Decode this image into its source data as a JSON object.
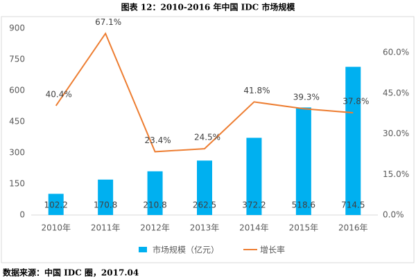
{
  "chart_data": {
    "type": "bar-line",
    "title": "图表 12：2010-2016 年中国 IDC 市场规模",
    "source": "数据来源：中国 IDC 圈，2017.04",
    "categories": [
      "2010年",
      "2011年",
      "2012年",
      "2013年",
      "2014年",
      "2015年",
      "2016年"
    ],
    "series": [
      {
        "name": "市场规模（亿元）",
        "type": "bar",
        "color": "#00b0f0",
        "values": [
          102.2,
          170.8,
          210.8,
          262.5,
          372.2,
          518.6,
          714.5
        ]
      },
      {
        "name": "增长率",
        "type": "line",
        "axis": "y2",
        "color": "#ed7d31",
        "values": [
          40.4,
          67.1,
          23.4,
          24.5,
          41.8,
          39.3,
          37.8
        ],
        "value_labels": [
          "40.4%",
          "67.1%",
          "23.4%",
          "24.5%",
          "41.8%",
          "39.3%",
          "37.8%"
        ]
      }
    ],
    "ylim": [
      0,
      900
    ],
    "yticks": [
      0,
      150,
      300,
      450,
      600,
      750,
      900
    ],
    "y2lim": [
      0,
      69
    ],
    "y2ticks": [
      {
        "value": 0,
        "label": "0.0%"
      },
      {
        "value": 15,
        "label": "15.0%"
      },
      {
        "value": 30,
        "label": "30.0%"
      },
      {
        "value": 45,
        "label": "45.0%"
      },
      {
        "value": 60,
        "label": "60.0%"
      }
    ],
    "grid": false,
    "legend": "bottom"
  }
}
